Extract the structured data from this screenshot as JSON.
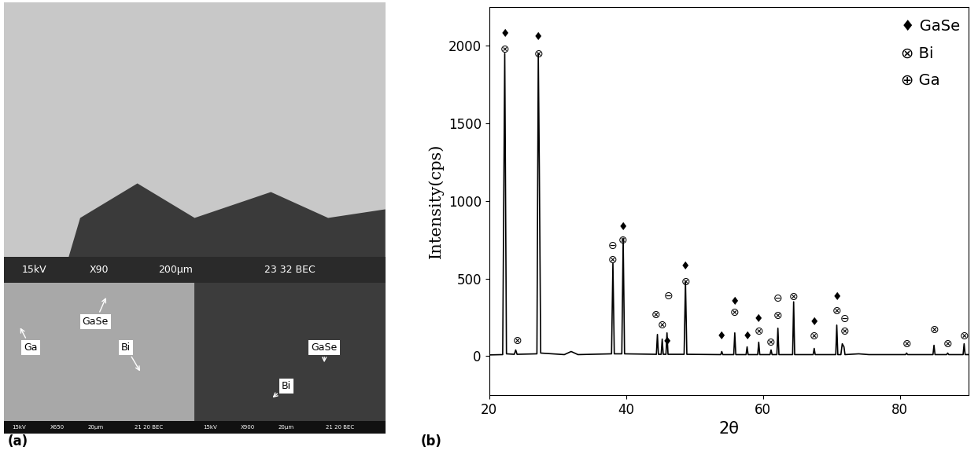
{
  "image_panel": {
    "label": "(a)",
    "main_bar": [
      "15kV",
      "X90",
      "200μm",
      "23 32 BEC"
    ],
    "inset_left": {
      "labels": [
        "GaSe",
        "Ga",
        "Bi"
      ],
      "bar": [
        "15kV",
        "X650",
        "20μm",
        "21 20 BEC"
      ]
    },
    "inset_right": {
      "labels": [
        "GaSe",
        "Bi"
      ],
      "bar": [
        "15kV",
        "X900",
        "20μm",
        "21 20 BEC"
      ]
    }
  },
  "chart_data": {
    "type": "line",
    "label": "(b)",
    "x_label": "2θ",
    "y_label": "Intensity(cps)",
    "color": "#000000",
    "x": [
      20,
      22.0,
      22.3,
      22.55,
      23.7,
      23.9,
      24.1,
      27.0,
      27.2,
      27.35,
      27.55,
      31,
      32,
      33,
      37.9,
      38.1,
      38.3,
      39.4,
      39.6,
      39.8,
      44.45,
      44.6,
      44.75,
      45.15,
      45.3,
      45.45,
      45.85,
      46.0,
      46.15,
      48.5,
      48.7,
      48.9,
      53.85,
      54.0,
      54.15,
      55.75,
      55.9,
      56.05,
      57.55,
      57.7,
      57.85,
      59.25,
      59.4,
      59.55,
      61.05,
      61.2,
      61.35,
      62.05,
      62.2,
      62.35,
      64.35,
      64.5,
      64.65,
      67.35,
      67.5,
      67.65,
      70.65,
      70.8,
      70.95,
      71.4,
      71.6,
      71.85,
      72.0,
      74,
      75.5,
      80.85,
      81.0,
      81.15,
      84.85,
      85.0,
      85.15,
      86.85,
      87.0,
      87.15,
      89.25,
      89.4,
      89.55,
      90
    ],
    "values": [
      8,
      10,
      1950,
      15,
      12,
      40,
      12,
      15,
      1950,
      1220,
      20,
      10,
      30,
      10,
      15,
      600,
      15,
      15,
      760,
      15,
      12,
      140,
      12,
      12,
      110,
      12,
      12,
      150,
      12,
      12,
      480,
      12,
      10,
      30,
      10,
      10,
      150,
      10,
      10,
      60,
      10,
      10,
      90,
      10,
      10,
      40,
      10,
      10,
      180,
      10,
      10,
      350,
      10,
      10,
      50,
      10,
      10,
      200,
      10,
      10,
      80,
      60,
      10,
      15,
      10,
      10,
      20,
      10,
      10,
      70,
      10,
      10,
      20,
      10,
      10,
      80,
      10,
      10
    ],
    "xlim": [
      20,
      90
    ],
    "xticks": [
      20,
      40,
      60,
      80
    ],
    "ylim": [
      -250,
      2250
    ],
    "yticks": [
      0,
      500,
      1000,
      1500,
      2000
    ],
    "legend_entries": [
      {
        "symbol": "♦",
        "name": "GaSe"
      },
      {
        "symbol": "⊗",
        "name": "Bi"
      },
      {
        "symbol": "⊕",
        "name": "Ga"
      }
    ],
    "peak_marks": [
      {
        "x": 22.3,
        "y": 2075,
        "symbol": "♦"
      },
      {
        "x": 22.3,
        "y": 1975,
        "symbol": "⊗"
      },
      {
        "x": 24.1,
        "y": 100,
        "symbol": "⊗"
      },
      {
        "x": 27.2,
        "y": 2055,
        "symbol": "♦"
      },
      {
        "x": 27.2,
        "y": 1945,
        "symbol": "⊗"
      },
      {
        "x": 38.1,
        "y": 710,
        "symbol": "⊖"
      },
      {
        "x": 38.1,
        "y": 620,
        "symbol": "⊗"
      },
      {
        "x": 39.6,
        "y": 830,
        "symbol": "♦"
      },
      {
        "x": 39.6,
        "y": 745,
        "symbol": "⊗"
      },
      {
        "x": 44.4,
        "y": 265,
        "symbol": "⊗"
      },
      {
        "x": 45.3,
        "y": 200,
        "symbol": "⊗"
      },
      {
        "x": 46.2,
        "y": 385,
        "symbol": "⊖"
      },
      {
        "x": 46.0,
        "y": 95,
        "symbol": "♦"
      },
      {
        "x": 48.7,
        "y": 580,
        "symbol": "♦"
      },
      {
        "x": 48.7,
        "y": 480,
        "symbol": "⊗"
      },
      {
        "x": 54.0,
        "y": 130,
        "symbol": "♦"
      },
      {
        "x": 55.9,
        "y": 350,
        "symbol": "♦"
      },
      {
        "x": 55.9,
        "y": 280,
        "symbol": "⊗"
      },
      {
        "x": 57.7,
        "y": 130,
        "symbol": "♦"
      },
      {
        "x": 59.4,
        "y": 240,
        "symbol": "♦"
      },
      {
        "x": 59.4,
        "y": 160,
        "symbol": "⊗"
      },
      {
        "x": 61.2,
        "y": 90,
        "symbol": "⊗"
      },
      {
        "x": 62.2,
        "y": 370,
        "symbol": "⊖"
      },
      {
        "x": 62.2,
        "y": 260,
        "symbol": "⊗"
      },
      {
        "x": 64.5,
        "y": 380,
        "symbol": "⊗"
      },
      {
        "x": 67.5,
        "y": 220,
        "symbol": "♦"
      },
      {
        "x": 67.5,
        "y": 130,
        "symbol": "⊗"
      },
      {
        "x": 70.8,
        "y": 380,
        "symbol": "♦"
      },
      {
        "x": 70.8,
        "y": 290,
        "symbol": "⊗"
      },
      {
        "x": 71.9,
        "y": 240,
        "symbol": "⊖"
      },
      {
        "x": 71.9,
        "y": 160,
        "symbol": "⊗"
      },
      {
        "x": 81.0,
        "y": 80,
        "symbol": "⊗"
      },
      {
        "x": 85.0,
        "y": 170,
        "symbol": "⊗"
      },
      {
        "x": 87.0,
        "y": 80,
        "symbol": "⊗"
      },
      {
        "x": 89.4,
        "y": 130,
        "symbol": "⊗"
      }
    ]
  }
}
